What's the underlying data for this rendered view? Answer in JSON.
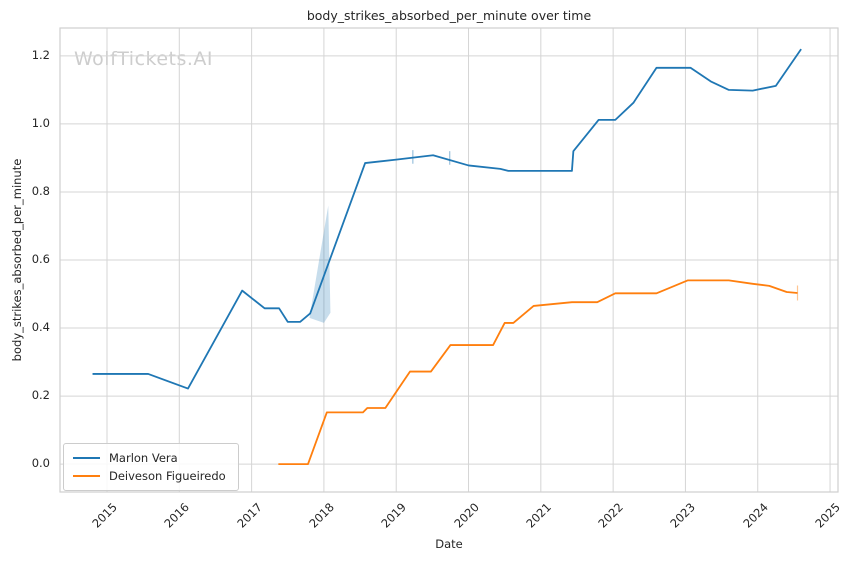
{
  "figure": {
    "watermark": "WolfTickets.AI"
  },
  "chart_data": {
    "type": "line",
    "title": "body_strikes_absorbed_per_minute over time",
    "xlabel": "Date",
    "ylabel": "body_strikes_absorbed_per_minute",
    "xlim": [
      2014.35,
      2025.11
    ],
    "ylim": [
      -0.082,
      1.282
    ],
    "x_ticks": [
      2015,
      2016,
      2017,
      2018,
      2019,
      2020,
      2021,
      2022,
      2023,
      2024,
      2025
    ],
    "y_ticks": {
      "values": [
        0.0,
        0.2,
        0.4,
        0.6,
        0.8,
        1.0,
        1.2
      ],
      "labels": [
        "0.0",
        "0.2",
        "0.4",
        "0.6",
        "0.8",
        "1.0",
        "1.2"
      ]
    },
    "grid": true,
    "legend_position": "lower left",
    "colors": {
      "grid": "#d5d5d5",
      "text": "#262626",
      "watermark": "#cdcdcd"
    },
    "series": [
      {
        "name": "Marlon Vera",
        "color": "#1f77b4",
        "points": [
          [
            2014.8,
            0.265
          ],
          [
            2015.57,
            0.265
          ],
          [
            2016.12,
            0.222
          ],
          [
            2016.87,
            0.51
          ],
          [
            2017.18,
            0.458
          ],
          [
            2017.38,
            0.458
          ],
          [
            2017.5,
            0.418
          ],
          [
            2017.67,
            0.418
          ],
          [
            2017.81,
            0.443
          ],
          [
            2018.57,
            0.885
          ],
          [
            2019.0,
            0.895
          ],
          [
            2019.51,
            0.908
          ],
          [
            2020.0,
            0.878
          ],
          [
            2020.44,
            0.868
          ],
          [
            2020.55,
            0.862
          ],
          [
            2021.43,
            0.862
          ],
          [
            2021.45,
            0.92
          ],
          [
            2021.8,
            1.012
          ],
          [
            2022.03,
            1.012
          ],
          [
            2022.28,
            1.062
          ],
          [
            2022.6,
            1.165
          ],
          [
            2023.07,
            1.165
          ],
          [
            2023.35,
            1.125
          ],
          [
            2023.6,
            1.1
          ],
          [
            2023.93,
            1.098
          ],
          [
            2024.25,
            1.112
          ],
          [
            2024.6,
            1.22
          ]
        ]
      },
      {
        "name": "Deiveson Figueiredo",
        "color": "#ff7f0e",
        "points": [
          [
            2017.37,
            0.0
          ],
          [
            2017.78,
            0.0
          ],
          [
            2018.04,
            0.152
          ],
          [
            2018.54,
            0.152
          ],
          [
            2018.6,
            0.165
          ],
          [
            2018.85,
            0.165
          ],
          [
            2019.19,
            0.272
          ],
          [
            2019.48,
            0.272
          ],
          [
            2019.75,
            0.35
          ],
          [
            2020.34,
            0.35
          ],
          [
            2020.5,
            0.415
          ],
          [
            2020.62,
            0.415
          ],
          [
            2020.9,
            0.465
          ],
          [
            2021.43,
            0.476
          ],
          [
            2021.78,
            0.476
          ],
          [
            2022.03,
            0.502
          ],
          [
            2022.6,
            0.502
          ],
          [
            2023.03,
            0.54
          ],
          [
            2023.6,
            0.54
          ],
          [
            2023.93,
            0.53
          ],
          [
            2024.16,
            0.524
          ],
          [
            2024.4,
            0.506
          ],
          [
            2024.55,
            0.503
          ]
        ]
      }
    ],
    "band": {
      "series": "Marlon Vera",
      "polygon": [
        [
          2017.8,
          0.43
        ],
        [
          2018.06,
          0.76
        ],
        [
          2018.09,
          0.445
        ],
        [
          2018.0,
          0.415
        ]
      ],
      "color": "#1f77b4",
      "opacity": 0.25
    },
    "error_ticks": [
      {
        "x": 2019.23,
        "y": 0.903,
        "half": 0.02,
        "color": "#1f77b4"
      },
      {
        "x": 2019.74,
        "y": 0.9,
        "half": 0.02,
        "color": "#1f77b4"
      },
      {
        "x": 2024.55,
        "y": 0.503,
        "half": 0.022,
        "color": "#ff7f0e"
      }
    ]
  }
}
